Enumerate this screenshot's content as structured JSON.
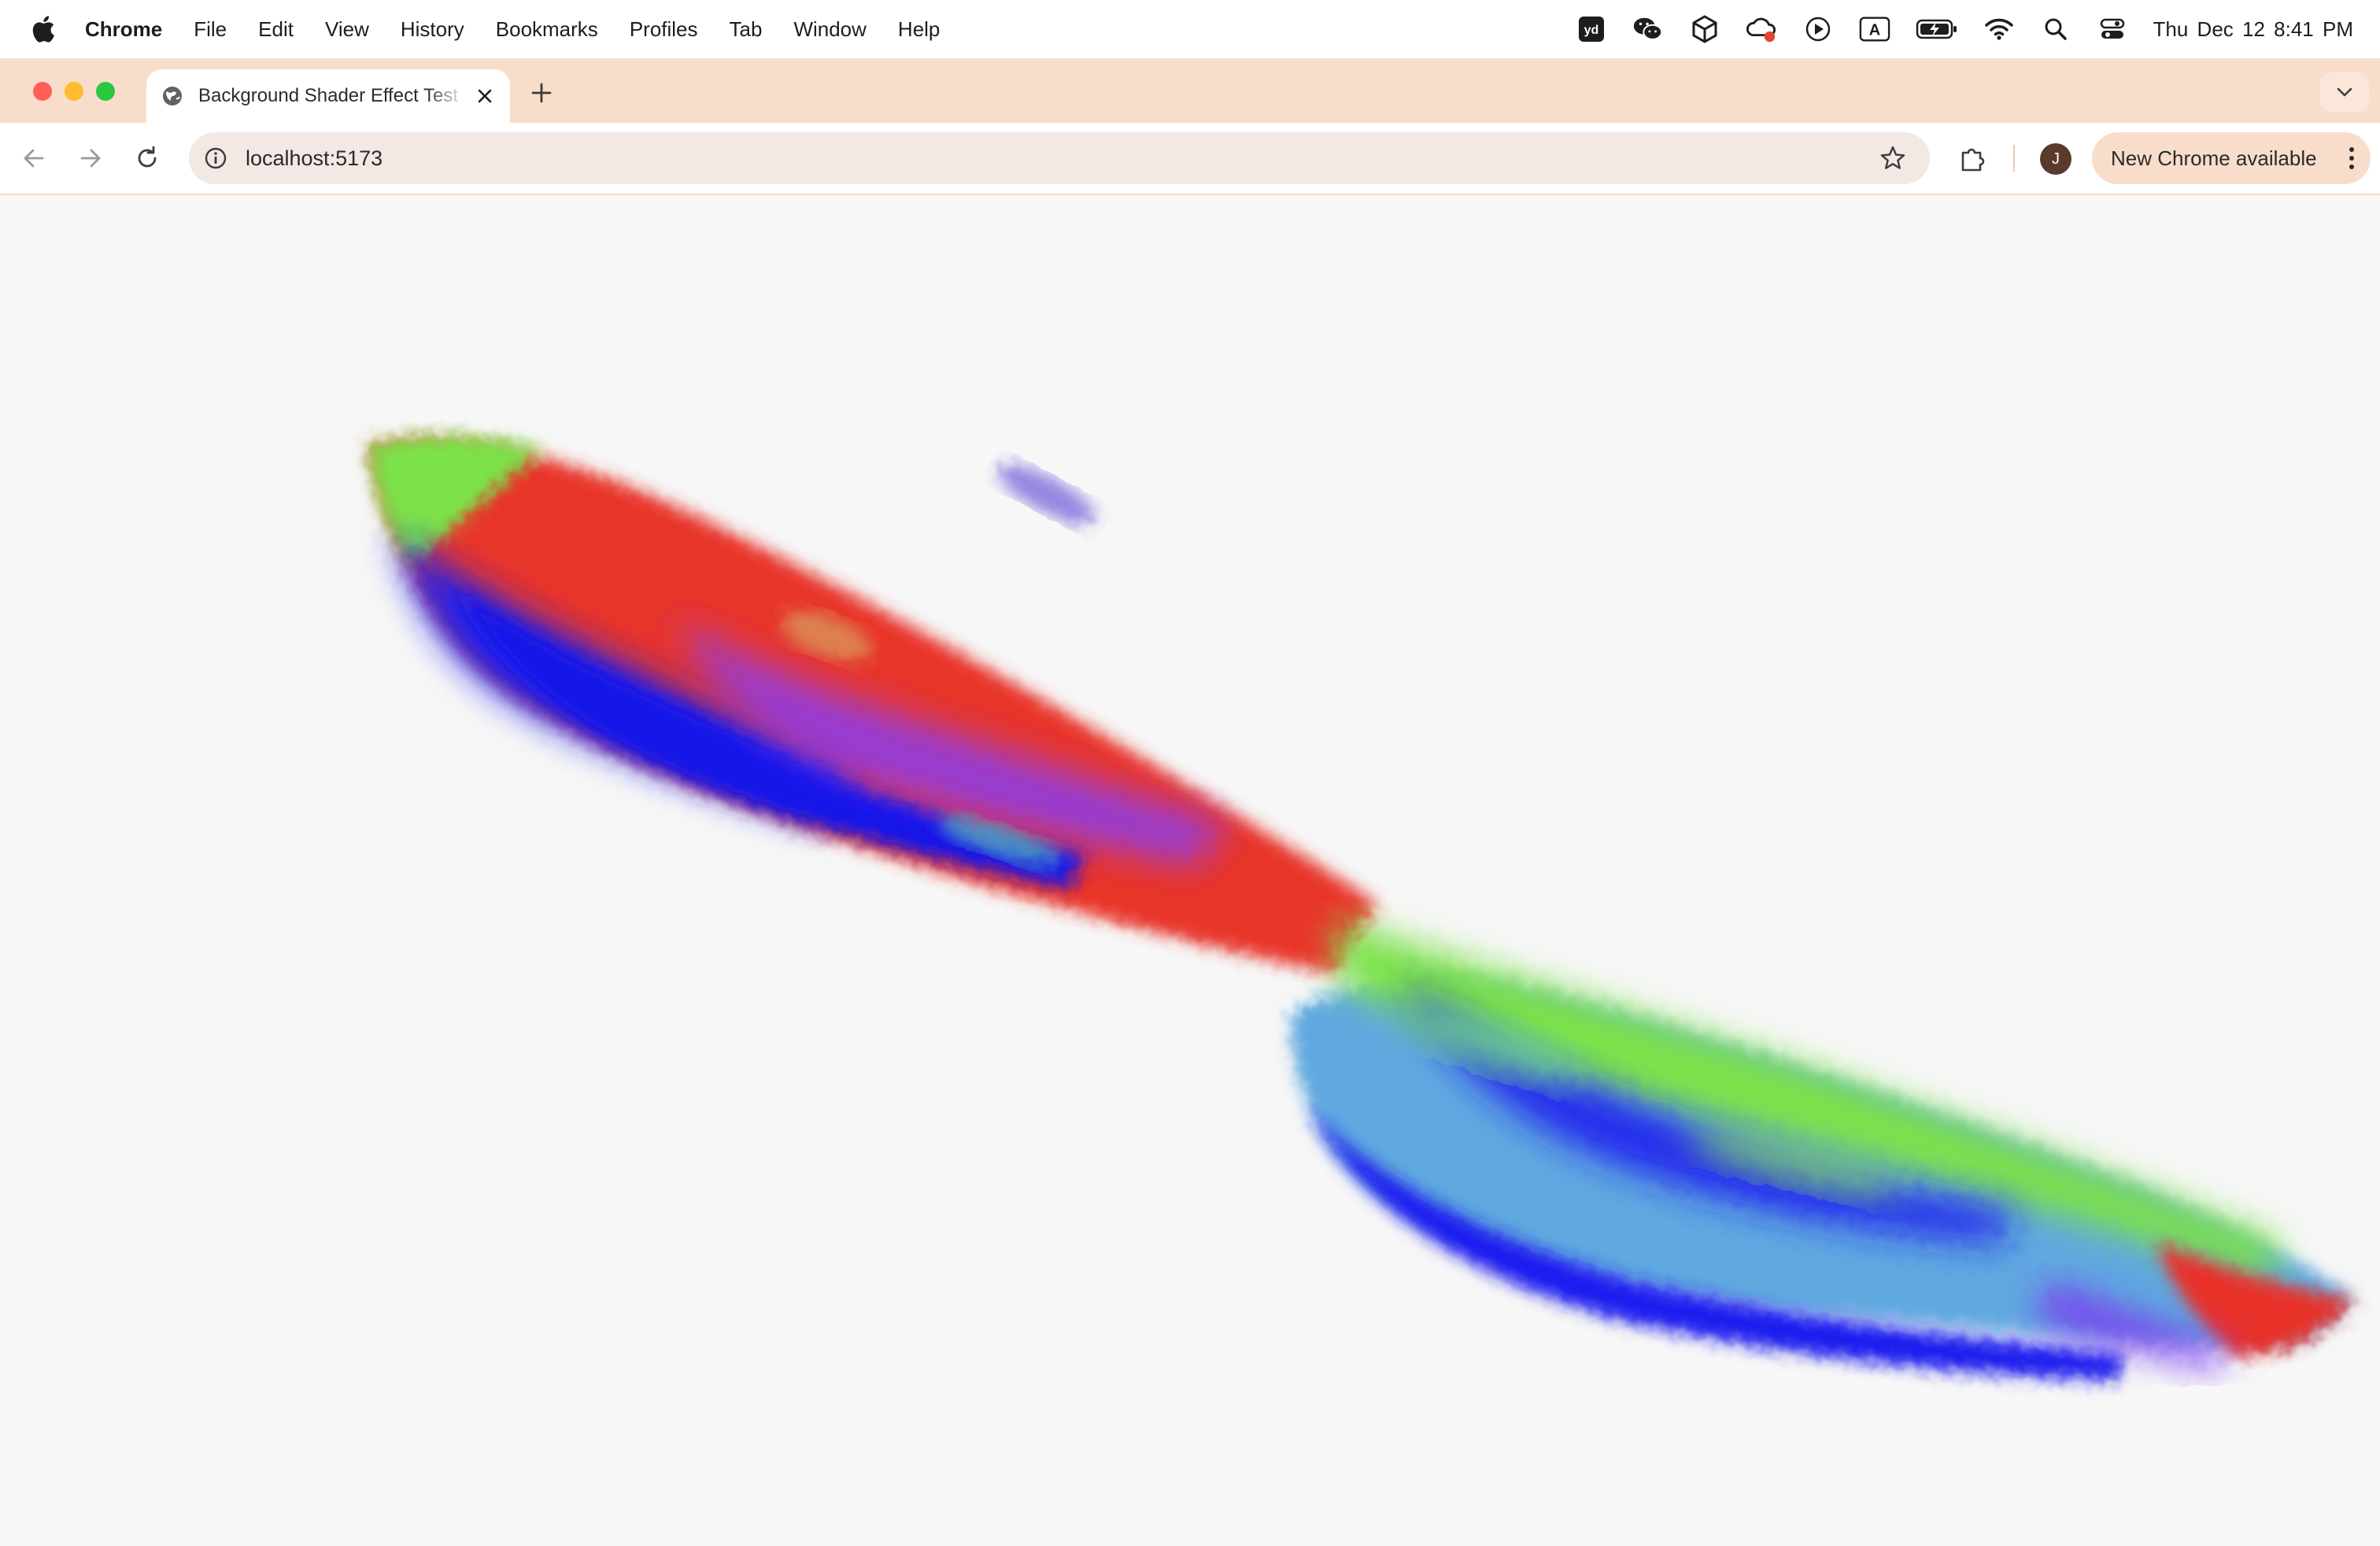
{
  "menubar": {
    "app_name": "Chrome",
    "items": [
      "File",
      "Edit",
      "View",
      "History",
      "Bookmarks",
      "Profiles",
      "Tab",
      "Window",
      "Help"
    ],
    "tray_icons": [
      "youdao-dict-icon",
      "wechat-icon",
      "unity-icon",
      "creative-cloud-icon",
      "play-icon",
      "input-method-icon",
      "battery-charging-icon",
      "wifi-icon",
      "spotlight-search-icon",
      "control-center-icon"
    ],
    "input_method_label": "A",
    "youdao_label": "yd",
    "clock": "Thu Dec 12  8:41 PM"
  },
  "browser": {
    "tab_title": "Background Shader Effect Test",
    "url": "localhost:5173",
    "avatar_initial": "J",
    "update_label": "New Chrome available",
    "accent_color": "#f8ddca"
  },
  "page": {
    "background": "#f7f7f7",
    "shader_colors": [
      "#7be24a",
      "#e8302a",
      "#1a1aef",
      "#7a3cf0",
      "#5fa8e0"
    ]
  }
}
